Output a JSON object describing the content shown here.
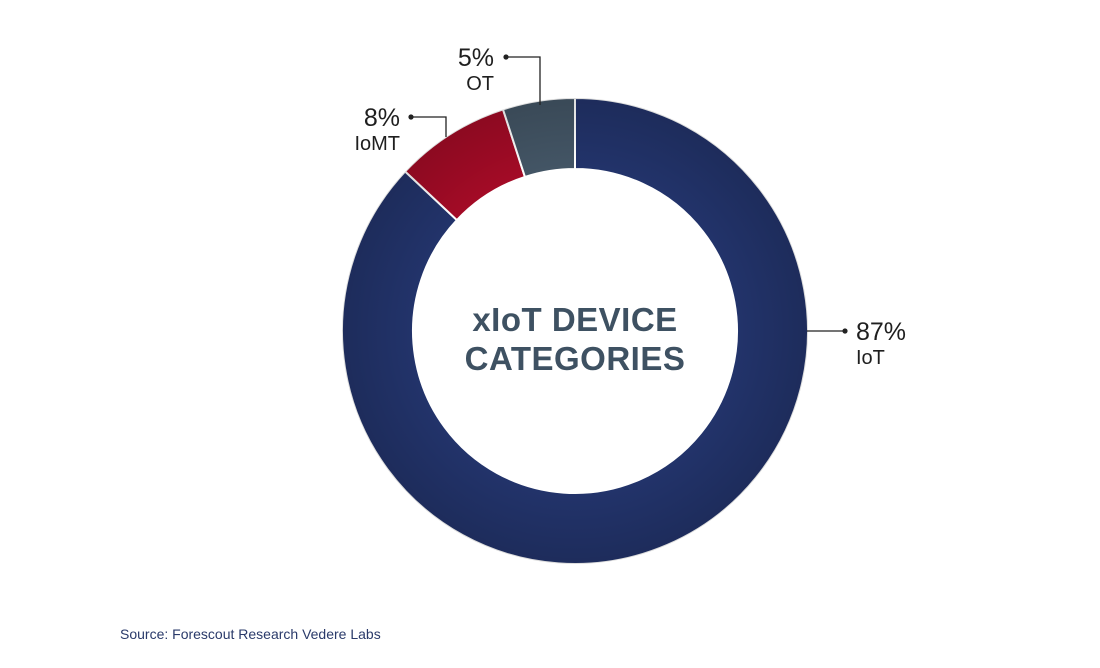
{
  "chart_data": {
    "type": "pie",
    "title": "xIoT DEVICE CATEGORIES",
    "title_lines": [
      "xIoT DEVICE",
      "CATEGORIES"
    ],
    "slices": [
      {
        "label": "IoT",
        "value": 87,
        "value_label": "87%",
        "color": "#22336a"
      },
      {
        "label": "IoMT",
        "value": 8,
        "value_label": "8%",
        "color": "#a30b26"
      },
      {
        "label": "OT",
        "value": 5,
        "value_label": "5%",
        "color": "#435565"
      }
    ],
    "donut": true,
    "legend": "none"
  },
  "source": "Source: Forescout Research Vedere Labs"
}
